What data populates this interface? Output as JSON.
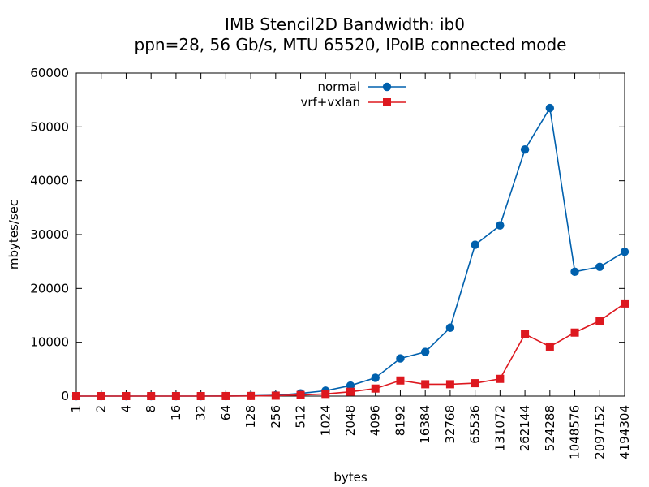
{
  "chart_data": {
    "type": "line",
    "title_line1": "IMB Stencil2D Bandwidth: ib0",
    "title_line2": "ppn=28, 56 Gb/s, MTU 65520, IPoIB connected mode",
    "xlabel": "bytes",
    "ylabel": "mbytes/sec",
    "ylim": [
      0,
      60000
    ],
    "yticks": [
      "0",
      "10000",
      "20000",
      "30000",
      "40000",
      "50000",
      "60000"
    ],
    "categories": [
      "1",
      "2",
      "4",
      "8",
      "16",
      "32",
      "64",
      "128",
      "256",
      "512",
      "1024",
      "2048",
      "4096",
      "8192",
      "16384",
      "32768",
      "65536",
      "131072",
      "262144",
      "524288",
      "1048576",
      "2097152",
      "4194304"
    ],
    "legend_position": "top-center",
    "grid": false,
    "series": [
      {
        "name": "normal",
        "color": "#0060ad",
        "marker": "circle",
        "values": [
          0,
          0,
          0,
          0,
          0,
          0,
          10,
          40,
          150,
          500,
          1000,
          1950,
          3400,
          7000,
          8200,
          12700,
          28100,
          31700,
          45800,
          53500,
          23100,
          24000,
          26800
        ]
      },
      {
        "name": "vrf+vxlan",
        "color": "#dd181f",
        "marker": "square",
        "values": [
          0,
          0,
          0,
          0,
          0,
          0,
          5,
          20,
          80,
          200,
          400,
          800,
          1400,
          2900,
          2200,
          2200,
          2400,
          3200,
          11500,
          9200,
          11800,
          14000,
          17200
        ]
      }
    ]
  }
}
